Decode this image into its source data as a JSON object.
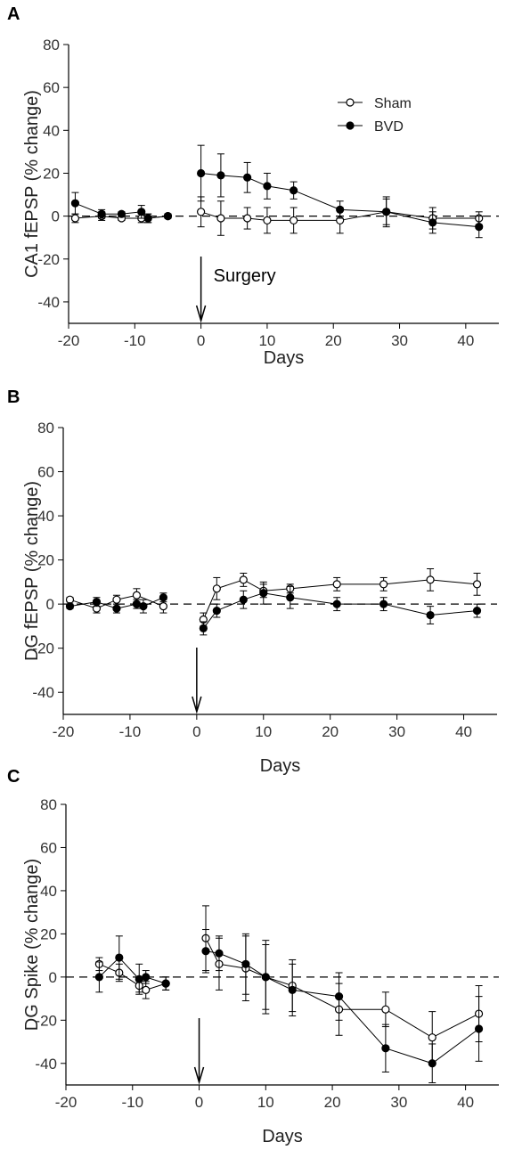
{
  "legend": {
    "sham_label": "Sham",
    "bvd_label": "BVD"
  },
  "colors": {
    "axis": "#000000",
    "sham_fill": "#ffffff",
    "bvd_fill": "#000000",
    "line": "#000000"
  },
  "chart_data": [
    {
      "type": "line",
      "panel_label": "A",
      "title": "",
      "xlabel": "Days",
      "ylabel": "CA1 fEPSP (% change)",
      "xlim": [
        -20,
        45
      ],
      "ylim": [
        -50,
        80
      ],
      "xticks": [
        -20,
        -10,
        0,
        10,
        20,
        30,
        40
      ],
      "yticks": [
        -40,
        -20,
        0,
        20,
        40,
        60,
        80
      ],
      "baseline": 0,
      "legend_position": "top-right",
      "annotation": {
        "text": "Surgery",
        "x": 0
      },
      "series": [
        {
          "name": "Sham",
          "marker": "open-circle",
          "pre": {
            "x": [
              -19,
              -15,
              -12,
              -9,
              -8,
              -5
            ],
            "y": [
              -1,
              0,
              -1,
              -1,
              -1,
              0
            ],
            "err": [
              2,
              2,
              1,
              2,
              2,
              1
            ]
          },
          "post": {
            "x": [
              0,
              3,
              7,
              10,
              14,
              21,
              28,
              35,
              42
            ],
            "y": [
              2,
              -1,
              -1,
              -2,
              -2,
              -2,
              2,
              -1,
              -1
            ],
            "err": [
              7,
              8,
              5,
              6,
              6,
              6,
              7,
              5,
              3
            ]
          }
        },
        {
          "name": "BVD",
          "marker": "filled-circle",
          "pre": {
            "x": [
              -19,
              -15,
              -12,
              -9,
              -8,
              -5
            ],
            "y": [
              6,
              1,
              1,
              2,
              -1,
              0
            ],
            "err": [
              5,
              2,
              1,
              3,
              2,
              1
            ]
          },
          "post": {
            "x": [
              0,
              3,
              7,
              10,
              14,
              21,
              28,
              35,
              42
            ],
            "y": [
              20,
              19,
              18,
              14,
              12,
              3,
              2,
              -3,
              -5
            ],
            "err": [
              13,
              10,
              7,
              6,
              4,
              4,
              6,
              5,
              5
            ]
          }
        }
      ]
    },
    {
      "type": "line",
      "panel_label": "B",
      "title": "",
      "xlabel": "Days",
      "ylabel": "DG fEPSP (% change)",
      "xlim": [
        -20,
        45
      ],
      "ylim": [
        -50,
        80
      ],
      "xticks": [
        -20,
        -10,
        0,
        10,
        20,
        30,
        40
      ],
      "yticks": [
        -40,
        -20,
        0,
        20,
        40,
        60,
        80
      ],
      "baseline": 0,
      "annotation": {
        "text": "",
        "x": 0
      },
      "series": [
        {
          "name": "Sham",
          "marker": "open-circle",
          "pre": {
            "x": [
              -19,
              -15,
              -12,
              -9,
              -5
            ],
            "y": [
              2,
              -2,
              2,
              4,
              -1
            ],
            "err": [
              1,
              2,
              2,
              3,
              3
            ]
          },
          "post": {
            "x": [
              1,
              3,
              7,
              10,
              14,
              21,
              28,
              35,
              42
            ],
            "y": [
              -7,
              7,
              11,
              6,
              7,
              9,
              9,
              11,
              9
            ],
            "err": [
              3,
              5,
              3,
              3,
              2,
              3,
              3,
              5,
              5
            ]
          }
        },
        {
          "name": "BVD",
          "marker": "filled-circle",
          "pre": {
            "x": [
              -19,
              -15,
              -12,
              -9,
              -8,
              -5
            ],
            "y": [
              -1,
              1,
              -2,
              0,
              -1,
              3
            ],
            "err": [
              1,
              2,
              2,
              2,
              3,
              2
            ]
          },
          "post": {
            "x": [
              1,
              3,
              7,
              10,
              14,
              21,
              28,
              35,
              42
            ],
            "y": [
              -11,
              -3,
              2,
              5,
              3,
              0,
              0,
              -5,
              -3
            ],
            "err": [
              3,
              3,
              4,
              5,
              5,
              3,
              3,
              4,
              3
            ]
          }
        }
      ]
    },
    {
      "type": "line",
      "panel_label": "C",
      "title": "",
      "xlabel": "Days",
      "ylabel": "DG Spike (% change)",
      "xlim": [
        -20,
        45
      ],
      "ylim": [
        -50,
        80
      ],
      "xticks": [
        -20,
        -10,
        0,
        10,
        20,
        30,
        40
      ],
      "yticks": [
        -40,
        -20,
        0,
        20,
        40,
        60,
        80
      ],
      "baseline": 0,
      "annotation": {
        "text": "",
        "x": 0
      },
      "series": [
        {
          "name": "Sham",
          "marker": "open-circle",
          "pre": {
            "x": [
              -15,
              -12,
              -9,
              -8,
              -5
            ],
            "y": [
              6,
              2,
              -4,
              -6,
              -3
            ],
            "err": [
              3,
              4,
              3,
              4,
              3
            ]
          },
          "post": {
            "x": [
              1,
              3,
              7,
              10,
              14,
              21,
              28,
              35,
              42
            ],
            "y": [
              18,
              6,
              4,
              0,
              -4,
              -15,
              -15,
              -28,
              -17
            ],
            "err": [
              15,
              12,
              15,
              15,
              12,
              12,
              8,
              12,
              13
            ]
          }
        },
        {
          "name": "BVD",
          "marker": "filled-circle",
          "pre": {
            "x": [
              -15,
              -12,
              -9,
              -8,
              -5
            ],
            "y": [
              0,
              9,
              -1,
              0,
              -3
            ],
            "err": [
              7,
              10,
              7,
              3,
              3
            ]
          },
          "post": {
            "x": [
              1,
              3,
              7,
              10,
              14,
              21,
              28,
              35,
              42
            ],
            "y": [
              12,
              11,
              6,
              0,
              -6,
              -9,
              -33,
              -40,
              -24
            ],
            "err": [
              10,
              8,
              14,
              17,
              12,
              11,
              11,
              9,
              15
            ]
          }
        }
      ]
    }
  ]
}
